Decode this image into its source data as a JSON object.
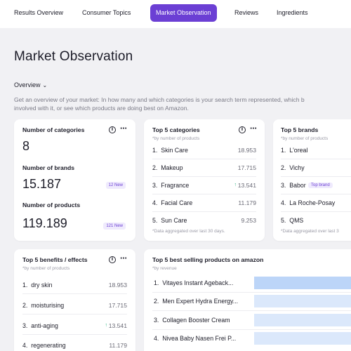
{
  "nav": {
    "tabs": [
      {
        "label": "Results Overview",
        "active": false
      },
      {
        "label": "Consumer Topics",
        "active": false
      },
      {
        "label": "Market Observation",
        "active": true
      },
      {
        "label": "Reviews",
        "active": false
      },
      {
        "label": "Ingredients",
        "active": false
      }
    ]
  },
  "page": {
    "title": "Market Observation",
    "view_selector": "Overview",
    "description_line1": "Get an overview of your market: In how many and which categories is your search term represented, which b",
    "description_line2": "involved with it, or see which products are doing best on Amazon."
  },
  "stats_card": {
    "categories_label": "Number of categories",
    "categories_value": "8",
    "brands_label": "Number of brands",
    "brands_value": "15.187",
    "brands_badge": "12 New",
    "products_label": "Number of products",
    "products_value": "119.189",
    "products_badge": "121 New",
    "icons": {
      "info": "info-icon",
      "more": "more-icon"
    }
  },
  "categories_card": {
    "title": "Top 5 categories",
    "subtitle": "*by number of products",
    "items": [
      {
        "rank": "1.",
        "name": "Skin Care",
        "value": "18.953"
      },
      {
        "rank": "2.",
        "name": "Makeup",
        "value": "17.715"
      },
      {
        "rank": "3.",
        "name": "Fragrance",
        "value": "13.541",
        "trend": "up-arrow-icon"
      },
      {
        "rank": "4.",
        "name": "Facial Care",
        "value": "11.179"
      },
      {
        "rank": "5.",
        "name": "Sun Care",
        "value": "9.253"
      }
    ],
    "note": "*Data aggregated over last 30 days."
  },
  "brands_card": {
    "title": "Top 5 brands",
    "subtitle": "*by number of products",
    "items": [
      {
        "rank": "1.",
        "name": "L'oreal"
      },
      {
        "rank": "2.",
        "name": "Vichy"
      },
      {
        "rank": "3.",
        "name": "Babor",
        "tag": "Top brand"
      },
      {
        "rank": "4.",
        "name": "La Roche-Posay"
      },
      {
        "rank": "5.",
        "name": "QMS"
      }
    ],
    "note": "*Data aggregated over last 3"
  },
  "benefits_card": {
    "title": "Top 5 benefits / effects",
    "subtitle": "*by number of products",
    "items": [
      {
        "rank": "1.",
        "name": "dry skin",
        "value": "18.953"
      },
      {
        "rank": "2.",
        "name": "moisturising",
        "value": "17.715"
      },
      {
        "rank": "3.",
        "name": "anti-aging",
        "value": "13.541",
        "trend": "up-arrow-icon"
      },
      {
        "rank": "4.",
        "name": "regenerating",
        "value": "11.179"
      }
    ]
  },
  "bestsellers_card": {
    "title": "Top 5 best selling products on amazon",
    "subtitle": "*by revenue",
    "items": [
      {
        "rank": "1.",
        "name": "Vitayes Instant Ageback..."
      },
      {
        "rank": "2.",
        "name": "Men Expert Hydra Energy..."
      },
      {
        "rank": "3.",
        "name": "Collagen Booster Cream"
      },
      {
        "rank": "4.",
        "name": "Nivea Baby Nasen Frei P..."
      }
    ]
  },
  "colors": {
    "accent": "#6b3fd4",
    "background": "#f1f1f4",
    "card": "#ffffff",
    "trend_up": "#22b07d",
    "bar": "#dbe8fb"
  }
}
